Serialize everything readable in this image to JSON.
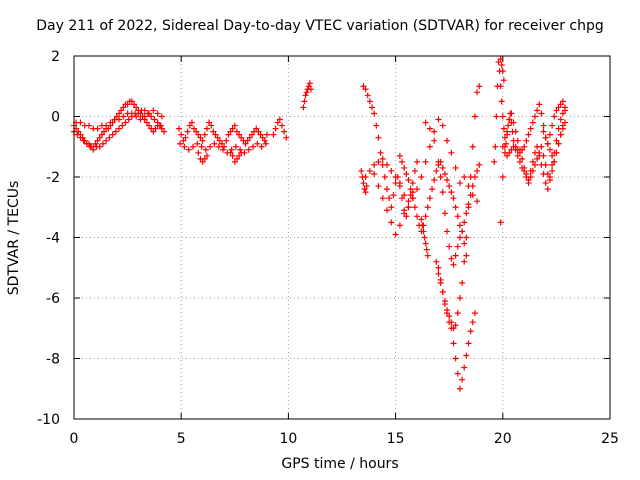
{
  "chart_data": {
    "type": "scatter",
    "title": "Day 211 of 2022, Sidereal Day-to-day VTEC variation (SDTVAR) for receiver chpg",
    "xlabel": "GPS time / hours",
    "ylabel": "SDTVAR / TECUs",
    "xlim": [
      0,
      25
    ],
    "ylim": [
      -10,
      2
    ],
    "xticks": [
      0,
      5,
      10,
      15,
      20,
      25
    ],
    "yticks": [
      -10,
      -8,
      -6,
      -4,
      -2,
      0,
      2
    ],
    "xtick_labels": [
      "0",
      "5",
      "10",
      "15",
      "20",
      "25"
    ],
    "ytick_labels": [
      "-10",
      "-8",
      "-6",
      "-4",
      "-2",
      "0",
      "2"
    ],
    "grid": true,
    "marker": "+",
    "color": "#ff0000",
    "series": [
      {
        "name": "SDTVAR",
        "x": [
          0.0,
          0.1,
          0.2,
          0.3,
          0.4,
          0.5,
          0.6,
          0.7,
          0.8,
          0.9,
          1.0,
          1.1,
          1.2,
          1.3,
          1.4,
          1.5,
          1.6,
          1.7,
          1.8,
          1.9,
          2.0,
          2.1,
          2.2,
          2.3,
          2.4,
          2.5,
          2.6,
          2.7,
          2.8,
          2.9,
          3.0,
          3.1,
          3.2,
          3.3,
          3.4,
          3.5,
          3.6,
          3.7,
          3.8,
          3.9,
          4.0,
          4.1,
          4.2,
          0.0,
          0.15,
          0.3,
          0.45,
          0.6,
          0.75,
          0.9,
          1.05,
          1.2,
          1.35,
          1.5,
          1.65,
          1.8,
          1.95,
          2.1,
          2.25,
          2.4,
          2.55,
          2.7,
          2.85,
          3.0,
          3.15,
          3.3,
          3.45,
          3.6,
          3.75,
          3.9,
          4.05,
          0.1,
          0.3,
          0.5,
          0.7,
          0.9,
          1.1,
          1.3,
          1.5,
          1.7,
          1.9,
          2.1,
          2.3,
          2.5,
          2.7,
          2.9,
          3.1,
          3.3,
          3.5,
          3.7,
          3.9,
          4.1,
          4.9,
          5.0,
          5.1,
          5.2,
          5.3,
          5.4,
          5.5,
          5.6,
          5.7,
          5.8,
          5.9,
          6.0,
          6.1,
          6.2,
          6.3,
          6.4,
          6.5,
          6.6,
          6.7,
          6.8,
          6.9,
          7.0,
          7.1,
          7.2,
          7.3,
          7.4,
          7.5,
          7.6,
          7.7,
          7.8,
          7.9,
          8.0,
          8.1,
          8.2,
          8.3,
          8.4,
          8.5,
          8.6,
          8.7,
          8.8,
          8.9,
          9.0,
          4.95,
          5.15,
          5.35,
          5.55,
          5.75,
          5.95,
          6.15,
          6.35,
          6.55,
          6.75,
          6.95,
          7.15,
          7.35,
          7.55,
          7.75,
          7.95,
          8.15,
          8.35,
          8.55,
          8.75,
          8.95,
          5.8,
          5.9,
          6.0,
          6.1,
          6.2,
          7.3,
          7.4,
          7.5,
          7.6,
          7.7,
          7.8,
          9.3,
          9.4,
          9.5,
          9.6,
          9.7,
          9.8,
          9.9,
          10.7,
          10.75,
          10.8,
          10.85,
          10.9,
          10.95,
          11.0,
          11.05,
          13.4,
          13.45,
          13.5,
          13.55,
          13.6,
          13.65,
          13.5,
          13.6,
          13.7,
          13.8,
          13.9,
          14.0,
          14.1,
          14.2,
          14.3,
          14.4,
          14.5,
          14.6,
          14.7,
          14.8,
          14.9,
          15.0,
          15.1,
          15.2,
          15.3,
          15.4,
          15.5,
          15.6,
          15.7,
          15.8,
          15.9,
          16.0,
          13.6,
          13.8,
          14.0,
          14.2,
          14.4,
          14.6,
          14.8,
          15.0,
          15.2,
          15.4,
          15.6,
          15.8,
          16.0,
          16.2,
          16.4,
          16.6,
          16.8,
          17.0,
          17.2,
          17.4,
          17.6,
          17.8,
          18.0,
          18.2,
          18.4,
          18.6,
          18.8,
          14.0,
          14.2,
          14.4,
          14.6,
          14.8,
          15.0,
          15.2,
          15.4,
          15.6,
          15.8,
          15.2,
          15.3,
          15.4,
          15.5,
          15.6,
          15.7,
          15.8,
          15.9,
          16.0,
          16.1,
          16.2,
          16.3,
          16.4,
          16.5,
          16.6,
          16.7,
          16.8,
          16.9,
          17.0,
          17.1,
          17.2,
          17.3,
          17.4,
          17.5,
          17.6,
          17.7,
          17.8,
          17.9,
          18.0,
          18.1,
          18.2,
          18.3,
          18.4,
          18.5,
          18.6,
          18.7,
          18.8,
          18.9,
          16.2,
          16.25,
          16.3,
          16.35,
          16.4,
          16.45,
          16.5,
          16.4,
          16.6,
          16.8,
          17.0,
          17.1,
          17.2,
          17.3,
          17.4,
          17.5,
          17.6,
          17.7,
          17.8,
          17.9,
          18.0,
          18.1,
          18.2,
          18.3,
          17.0,
          17.1,
          17.2,
          17.3,
          17.4,
          17.5,
          17.6,
          17.7,
          17.8,
          17.9,
          18.0,
          18.1,
          18.2,
          18.3,
          18.4,
          18.5,
          18.6,
          18.7,
          16.9,
          17.0,
          17.1,
          17.2,
          17.3,
          17.4,
          17.5,
          17.6,
          17.7,
          17.8,
          17.9,
          18.0,
          18.1,
          18.2,
          18.3,
          18.4,
          18.5,
          18.6,
          18.7,
          18.8,
          18.9,
          19.6,
          19.65,
          19.7,
          19.75,
          19.8,
          19.85,
          19.9,
          19.95,
          20.0,
          20.05,
          20.1,
          20.15,
          20.2,
          20.25,
          20.3,
          20.35,
          20.4,
          20.45,
          20.5,
          20.6,
          20.7,
          20.8,
          20.9,
          21.0,
          21.1,
          21.2,
          21.3,
          21.4,
          21.5,
          21.6,
          21.7,
          21.8,
          21.9,
          22.0,
          22.1,
          22.2,
          22.3,
          22.4,
          22.5,
          22.6,
          22.7,
          22.8,
          22.9,
          19.9,
          20.0,
          20.1,
          20.2,
          20.3,
          20.4,
          20.5,
          20.6,
          20.7,
          20.8,
          20.9,
          21.0,
          21.1,
          21.2,
          21.3,
          21.4,
          21.5,
          21.6,
          21.7,
          21.8,
          21.9,
          22.0,
          22.1,
          22.2,
          22.3,
          22.4,
          22.5,
          22.6,
          22.7,
          22.8,
          22.9,
          20.0,
          20.1,
          20.2,
          20.3,
          20.4,
          20.5,
          20.6,
          20.7,
          20.8,
          20.9,
          21.0,
          21.1,
          21.2,
          21.3,
          21.4,
          21.5,
          21.6,
          21.7,
          21.8,
          21.9,
          22.0,
          22.1,
          22.2,
          22.3,
          22.4,
          22.5,
          22.6,
          22.7,
          22.8,
          22.9,
          21.9,
          22.0,
          22.1,
          22.2,
          22.3,
          22.4,
          22.5,
          22.6,
          22.7,
          22.8,
          19.9,
          19.95,
          20.0,
          20.05
        ],
        "y": [
          -0.3,
          -0.4,
          -0.5,
          -0.6,
          -0.7,
          -0.8,
          -0.9,
          -0.9,
          -1.0,
          -1.0,
          -0.9,
          -0.8,
          -0.7,
          -0.6,
          -0.5,
          -0.4,
          -0.4,
          -0.3,
          -0.2,
          -0.1,
          0.0,
          0.1,
          0.2,
          0.3,
          0.4,
          0.4,
          0.5,
          0.5,
          0.4,
          0.3,
          0.2,
          0.1,
          0.0,
          -0.1,
          -0.2,
          -0.3,
          -0.4,
          -0.5,
          -0.4,
          -0.3,
          -0.3,
          -0.4,
          -0.5,
          -0.5,
          -0.6,
          -0.7,
          -0.8,
          -0.9,
          -1.0,
          -1.1,
          -1.0,
          -1.0,
          -0.9,
          -0.8,
          -0.7,
          -0.6,
          -0.5,
          -0.4,
          -0.3,
          -0.2,
          -0.1,
          0.0,
          0.1,
          0.1,
          0.2,
          0.2,
          0.1,
          0.0,
          -0.1,
          -0.2,
          -0.3,
          -0.2,
          -0.2,
          -0.3,
          -0.3,
          -0.4,
          -0.4,
          -0.3,
          -0.3,
          -0.2,
          -0.1,
          -0.1,
          0.0,
          0.1,
          0.1,
          0.0,
          -0.1,
          0.0,
          0.1,
          0.2,
          0.1,
          0.0,
          -0.4,
          -0.6,
          -0.8,
          -0.7,
          -0.5,
          -0.3,
          -0.2,
          -0.4,
          -0.5,
          -0.6,
          -0.7,
          -0.8,
          -0.6,
          -0.4,
          -0.2,
          -0.3,
          -0.5,
          -0.6,
          -0.7,
          -0.8,
          -0.9,
          -1.0,
          -0.8,
          -0.6,
          -0.5,
          -0.4,
          -0.3,
          -0.5,
          -0.6,
          -0.7,
          -0.8,
          -0.9,
          -0.8,
          -0.7,
          -0.6,
          -0.5,
          -0.4,
          -0.5,
          -0.6,
          -0.7,
          -0.8,
          -0.6,
          -0.9,
          -1.0,
          -1.1,
          -1.0,
          -0.9,
          -1.0,
          -1.1,
          -1.0,
          -0.9,
          -1.0,
          -1.1,
          -1.2,
          -1.1,
          -1.0,
          -1.1,
          -1.2,
          -1.1,
          -1.0,
          -0.9,
          -1.0,
          -0.9,
          -1.2,
          -1.4,
          -1.5,
          -1.4,
          -1.3,
          -1.2,
          -1.3,
          -1.5,
          -1.4,
          -1.3,
          -1.2,
          -0.6,
          -0.4,
          -0.2,
          -0.1,
          -0.3,
          -0.5,
          -0.7,
          0.3,
          0.5,
          0.7,
          0.8,
          0.9,
          1.0,
          1.1,
          0.9,
          -1.8,
          -2.0,
          -2.2,
          -2.4,
          -2.5,
          -2.3,
          1.0,
          0.9,
          0.7,
          0.5,
          0.3,
          0.1,
          -0.3,
          -0.7,
          -1.2,
          -1.6,
          -2.0,
          -2.4,
          -2.7,
          -3.0,
          -2.6,
          -2.2,
          -2.0,
          -2.3,
          -2.7,
          -3.1,
          -3.3,
          -3.0,
          -2.6,
          -2.2,
          -1.8,
          -1.5,
          -2.0,
          -1.8,
          -1.6,
          -1.5,
          -1.4,
          -1.6,
          -1.8,
          -2.0,
          -2.2,
          -2.6,
          -3.0,
          -2.7,
          -2.4,
          -2.0,
          -1.5,
          -1.0,
          -0.5,
          -0.1,
          -0.3,
          -0.8,
          -1.2,
          -1.7,
          -2.2,
          -2.0,
          -2.3,
          -2.6,
          -2.8,
          -1.9,
          -2.3,
          -2.7,
          -3.1,
          -3.5,
          -3.9,
          -3.6,
          -3.2,
          -2.8,
          -2.5,
          -1.3,
          -1.5,
          -1.7,
          -1.9,
          -2.1,
          -2.4,
          -2.7,
          -3.0,
          -3.3,
          -3.6,
          -3.8,
          -3.6,
          -3.3,
          -3.0,
          -2.7,
          -2.4,
          -2.1,
          -1.8,
          -1.6,
          -1.5,
          -1.7,
          -1.9,
          -2.1,
          -2.3,
          -2.5,
          -2.7,
          -3.0,
          -3.3,
          -3.6,
          -3.8,
          -3.5,
          -3.2,
          -2.9,
          -2.6,
          -2.3,
          -2.0,
          -1.8,
          -1.6,
          -3.4,
          -3.6,
          -3.8,
          -4.0,
          -4.2,
          -4.4,
          -4.6,
          -0.2,
          -0.4,
          -0.8,
          -1.5,
          -2.0,
          -2.5,
          -3.2,
          -3.8,
          -4.3,
          -4.7,
          -4.9,
          -4.6,
          -4.3,
          -4.0,
          -3.8,
          -4.2,
          -4.6,
          -5.0,
          -5.4,
          -5.8,
          -6.2,
          -6.5,
          -6.8,
          -7.0,
          -7.5,
          -8.0,
          -8.5,
          -9.0,
          -8.7,
          -8.3,
          -7.9,
          -7.5,
          -7.1,
          -6.8,
          -6.5,
          -4.8,
          -5.2,
          -5.5,
          -5.8,
          -6.1,
          -6.4,
          -6.6,
          -6.8,
          -7.0,
          -6.9,
          -6.5,
          -6.0,
          -5.5,
          -4.8,
          -4.0,
          -3.0,
          -2.0,
          -1.0,
          0.0,
          0.8,
          1.0,
          -1.5,
          -1.0,
          0.0,
          1.0,
          1.8,
          1.5,
          1.0,
          0.5,
          0.0,
          -0.4,
          -0.7,
          -0.9,
          -0.6,
          -0.3,
          -0.1,
          0.1,
          -0.2,
          -0.5,
          -0.8,
          -1.0,
          -1.1,
          -1.2,
          -1.1,
          -1.0,
          -0.8,
          -0.6,
          -0.4,
          -0.2,
          0.0,
          0.2,
          0.4,
          0.1,
          -0.3,
          -0.7,
          -0.9,
          -0.6,
          -0.3,
          0.0,
          0.2,
          0.3,
          0.4,
          0.5,
          0.3,
          -3.5,
          -2.0,
          -1.0,
          -0.5,
          -0.1,
          0.1,
          -0.2,
          -0.5,
          -0.8,
          -1.1,
          -1.4,
          -1.7,
          -1.9,
          -2.1,
          -1.8,
          -1.5,
          -1.2,
          -1.0,
          -1.3,
          -1.6,
          -1.9,
          -2.2,
          -2.4,
          -2.0,
          -1.6,
          -1.2,
          -0.8,
          -0.4,
          -0.1,
          0.1,
          0.2,
          -1.0,
          -1.2,
          -1.3,
          -1.2,
          -1.1,
          -1.0,
          -1.1,
          -1.3,
          -1.5,
          -1.7,
          -1.8,
          -2.0,
          -2.2,
          -2.0,
          -1.8,
          -1.6,
          -1.4,
          -1.2,
          -1.0,
          -1.3,
          -1.6,
          -1.9,
          -2.1,
          -1.8,
          -1.5,
          -1.2,
          -0.9,
          -0.6,
          -0.4,
          -0.2,
          -0.5,
          -0.7,
          -0.9,
          -1.1,
          -1.3,
          -1.5,
          -1.2,
          -0.9,
          -0.6,
          -0.3,
          1.9,
          1.7,
          1.5,
          1.2
        ]
      }
    ]
  }
}
